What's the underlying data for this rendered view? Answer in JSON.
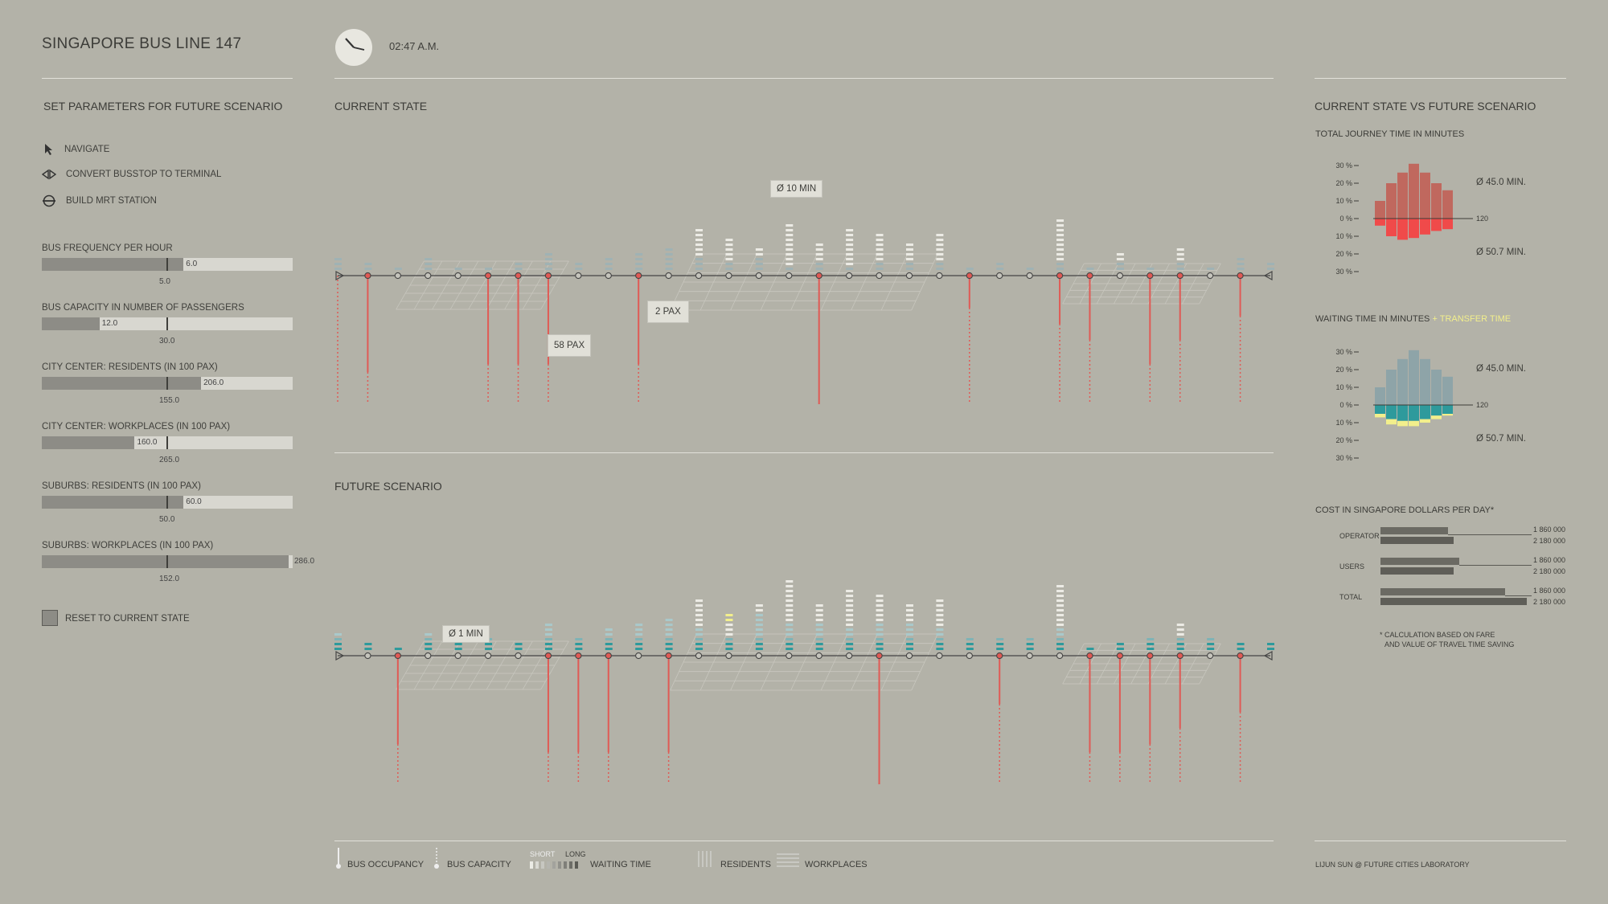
{
  "header": {
    "app_title": "SINGAPORE BUS LINE 147",
    "clock_time": "02:47 A.M."
  },
  "sidebar": {
    "heading": "SET PARAMETERS FOR FUTURE SCENARIO",
    "tools": [
      {
        "label": "NAVIGATE",
        "icon": "cursor-arrow-icon"
      },
      {
        "label": "CONVERT BUSSTOP TO TERMINAL",
        "icon": "terminal-icon"
      },
      {
        "label": "BUILD MRT STATION",
        "icon": "mrt-station-icon"
      }
    ],
    "sliders": [
      {
        "label": "BUS FREQUENCY PER HOUR",
        "value": "6.0",
        "reference": "5.0",
        "fill_fraction": 0.565,
        "mark_fraction": 0.5
      },
      {
        "label": "BUS CAPACITY IN NUMBER OF PASSENGERS",
        "value": "12.0",
        "reference": "30.0",
        "fill_fraction": 0.23,
        "mark_fraction": 0.5
      },
      {
        "label": "CITY CENTER: RESIDENTS (IN 100 PAX)",
        "value": "206.0",
        "reference": "155.0",
        "fill_fraction": 0.635,
        "mark_fraction": 0.5
      },
      {
        "label": "CITY CENTER: WORKPLACES (IN 100 PAX)",
        "value": "160.0",
        "reference": "265.0",
        "fill_fraction": 0.37,
        "mark_fraction": 0.5
      },
      {
        "label": "SUBURBS: RESIDENTS (IN 100 PAX)",
        "value": "60.0",
        "reference": "50.0",
        "fill_fraction": 0.565,
        "mark_fraction": 0.5
      },
      {
        "label": "SUBURBS: WORKPLACES (IN 100 PAX)",
        "value": "286.0",
        "reference": "152.0",
        "fill_fraction": 0.985,
        "mark_fraction": 0.5
      }
    ],
    "reset_label": "RESET TO CURRENT STATE"
  },
  "panels": {
    "current_title": "CURRENT STATE",
    "future_title": "FUTURE SCENARIO",
    "current_tags": {
      "wait": "Ø 10 MIN",
      "pax_small": "2 PAX",
      "pax_big": "58 PAX"
    },
    "future_tags": {
      "wait": "Ø 1 MIN"
    }
  },
  "legend": {
    "occupancy": "BUS OCCUPANCY",
    "capacity": "BUS CAPACITY",
    "short": "SHORT",
    "long": "LONG",
    "waiting": "WAITING TIME",
    "residents": "RESIDENTS",
    "workplaces": "WORKPLACES"
  },
  "comparison": {
    "heading": "CURRENT STATE VS FUTURE SCENARIO",
    "journey_title": "TOTAL JOURNEY TIME IN MINUTES",
    "waiting_title": "WAITING TIME IN MINUTES",
    "transfer_label": "+ TRANSFER TIME",
    "tick_labels": [
      "30 %",
      "20 %",
      "10 %",
      "0 %",
      "10 %",
      "20 %",
      "30 %"
    ],
    "axis_end_label": "120",
    "journey_current_avg": "Ø 45.0 MIN.",
    "journey_future_avg": "Ø 50.7 MIN.",
    "waiting_current_avg": "Ø 45.0 MIN.",
    "waiting_future_avg": "Ø 50.7 MIN.",
    "cost_title": "COST IN SINGAPORE DOLLARS PER DAY*",
    "cost_rows": [
      {
        "label": "OPERATOR",
        "current_text": "1 860 000",
        "future_text": "2 180 000",
        "current_frac": 0.46,
        "future_frac": 0.5
      },
      {
        "label": "USERS",
        "current_text": "1 860 000",
        "future_text": "2 180 000",
        "current_frac": 0.54,
        "future_frac": 0.5
      },
      {
        "label": "TOTAL",
        "current_text": "1 860 000",
        "future_text": "2 180 000",
        "current_frac": 0.85,
        "future_frac": 1.0
      }
    ],
    "footnote_line1": "* CALCULATION BASED ON FARE",
    "footnote_line2": "AND VALUE OF TRAVEL TIME SAVING",
    "credit": "LIJUN SUN @ FUTURE CITIES LABORATORY"
  },
  "chart_data": [
    {
      "type": "bar",
      "title": "TOTAL JOURNEY TIME IN MINUTES",
      "series": [
        {
          "name": "current",
          "values": [
            10,
            20,
            26,
            31,
            26,
            20,
            16
          ],
          "color": "#c0685e"
        },
        {
          "name": "future",
          "values": [
            4,
            10,
            12,
            11,
            9,
            7,
            6
          ],
          "color": "#f04a4a"
        }
      ],
      "ylim": [
        -30,
        30
      ]
    },
    {
      "type": "bar",
      "title": "WAITING TIME IN MINUTES",
      "series": [
        {
          "name": "current",
          "values": [
            10,
            20,
            26,
            31,
            26,
            20,
            16
          ],
          "color": "#8ea4a8"
        },
        {
          "name": "future",
          "values": [
            5,
            8,
            9,
            9,
            8,
            6,
            5
          ],
          "color": "#2e9a9c"
        },
        {
          "name": "transfer",
          "values": [
            2,
            3,
            3,
            3,
            2,
            2,
            1
          ],
          "color": "#f2ef8c"
        }
      ],
      "ylim": [
        -30,
        30
      ]
    }
  ],
  "colors": {
    "background": "#b3b2a8",
    "teal": "#2e9a9c",
    "transfer": "#f2ef8c",
    "red": "#ee4848"
  }
}
